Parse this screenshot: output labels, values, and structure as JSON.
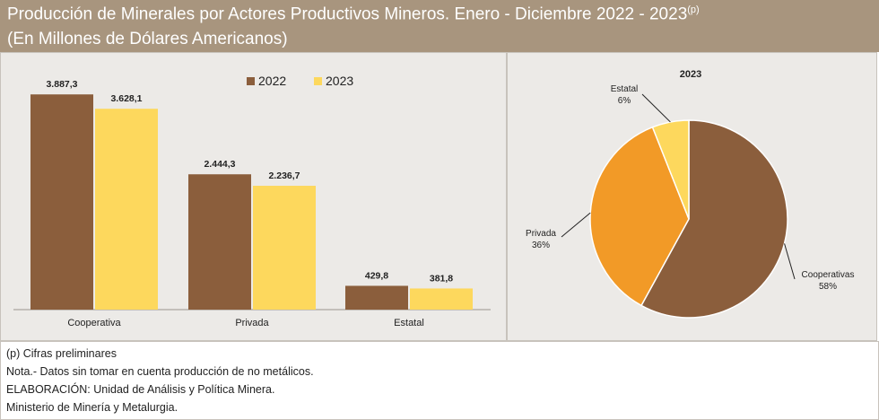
{
  "header": {
    "title": "Producción de Minerales por Actores Productivos Mineros. Enero - Diciembre 2022 - 2023",
    "title_sup": "(p)",
    "subtitle": "(En Millones de Dólares Americanos)"
  },
  "colors": {
    "header_bg": "#a8957e",
    "series_2022": "#8b5e3c",
    "series_2023": "#fdd85d",
    "pie_cooperativas": "#8b5e3c",
    "pie_privada": "#f29a27",
    "pie_estatal": "#fdd85d"
  },
  "chart_data": [
    {
      "type": "bar",
      "categories": [
        "Cooperativa",
        "Privada",
        "Estatal"
      ],
      "series": [
        {
          "name": "2022",
          "values": [
            3887.3,
            2444.3,
            429.8
          ],
          "labels": [
            "3.887,3",
            "2.444,3",
            "429,8"
          ]
        },
        {
          "name": "2023",
          "values": [
            3628.1,
            2236.7,
            381.8
          ],
          "labels": [
            "3.628,1",
            "2.236,7",
            "381,8"
          ]
        }
      ],
      "ylim": [
        0,
        4150
      ],
      "legend": "top",
      "grid": false
    },
    {
      "type": "pie",
      "title": "2023",
      "slices": [
        {
          "name": "Cooperativas",
          "value": 58,
          "label": "58%"
        },
        {
          "name": "Privada",
          "value": 36,
          "label": "36%"
        },
        {
          "name": "Estatal",
          "value": 6,
          "label": "6%"
        }
      ]
    }
  ],
  "notes": [
    "(p) Cifras preliminares",
    "Nota.- Datos sin tomar en cuenta producción de no metálicos.",
    "ELABORACIÓN: Unidad de Análisis y Política Minera.",
    "Ministerio de Minería y Metalurgia."
  ]
}
